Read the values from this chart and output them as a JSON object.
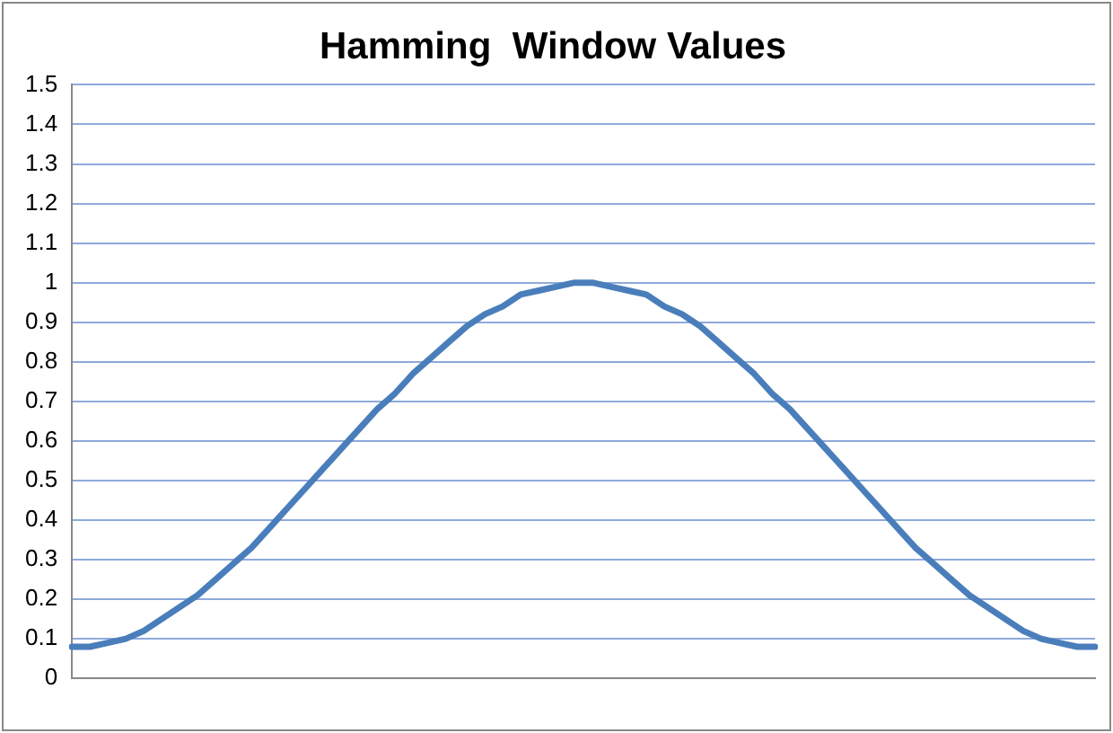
{
  "chart_data": {
    "type": "line",
    "title": "Hamming  Window Values",
    "categories": [
      null,
      null,
      null,
      null,
      null,
      null,
      null,
      null,
      null,
      null,
      null,
      null,
      null,
      null,
      null,
      null,
      null,
      null,
      null,
      null,
      null,
      null,
      null,
      null,
      null,
      null,
      null,
      null,
      null,
      null,
      null,
      null,
      null,
      null,
      null,
      null,
      null,
      null,
      null,
      null,
      null,
      null,
      null,
      null,
      null,
      null,
      null,
      null,
      null,
      null,
      null,
      null,
      null,
      null,
      null,
      null,
      null,
      null
    ],
    "series": [
      {
        "color": "#4a7ebb",
        "values": [
          0.08,
          0.08,
          0.09,
          0.1,
          0.12,
          0.15,
          0.18,
          0.21,
          0.25,
          0.29,
          0.33,
          0.38,
          0.43,
          0.48,
          0.53,
          0.58,
          0.63,
          0.68,
          0.72,
          0.77,
          0.81,
          0.85,
          0.89,
          0.92,
          0.94,
          0.97,
          0.98,
          0.99,
          1.0,
          1.0,
          0.99,
          0.98,
          0.97,
          0.94,
          0.92,
          0.89,
          0.85,
          0.81,
          0.77,
          0.72,
          0.68,
          0.63,
          0.58,
          0.53,
          0.48,
          0.43,
          0.38,
          0.33,
          0.29,
          0.25,
          0.21,
          0.18,
          0.15,
          0.12,
          0.1,
          0.09,
          0.08,
          0.08
        ]
      }
    ],
    "ylim": [
      0,
      1.5
    ],
    "yticks": [
      0,
      0.1,
      0.2,
      0.3,
      0.4,
      0.5,
      0.6,
      0.7,
      0.8,
      0.9,
      1,
      1.1,
      1.2,
      1.3,
      1.4,
      1.5
    ],
    "grid": "y",
    "legend": false,
    "marker": "none",
    "line_style": "solid"
  }
}
